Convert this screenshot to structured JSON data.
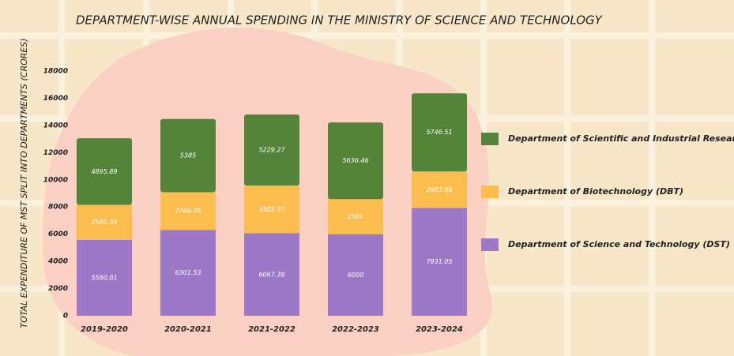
{
  "chart_data": {
    "type": "stacked_bar",
    "title": "DEPARTMENT-WISE ANNUAL SPENDING IN THE  MINISTRY OF SCIENCE AND TECHNOLOGY",
    "y_label": "TOTAL EXPENDITURE OF MST SPLIT INTO DEPARTMENTS (CRORES)",
    "categories": [
      "2019-2020",
      "2020-2021",
      "2021-2022",
      "2022-2023",
      "2023-2024"
    ],
    "series": [
      {
        "name": "Department of Science and Technology (DST)",
        "color": "#9c78c6",
        "values": [
          5580.01,
          6301.53,
          6067.39,
          6000,
          7931.05
        ]
      },
      {
        "name": "Department of Biotechnology (DBT)",
        "color": "#fbbd4e",
        "values": [
          2580.34,
          2786.76,
          3502.37,
          2581,
          2683.86
        ]
      },
      {
        "name": "Department of Scientific and Industrial Research (DSIR)",
        "color": "#53843a",
        "values": [
          4895.89,
          5385,
          5229.27,
          5636.46,
          5746.51
        ]
      }
    ],
    "ylim": [
      0,
      18000
    ],
    "yticks": [
      0,
      2000,
      4000,
      6000,
      8000,
      10000,
      12000,
      14000,
      16000,
      18000
    ],
    "legend": "right"
  }
}
